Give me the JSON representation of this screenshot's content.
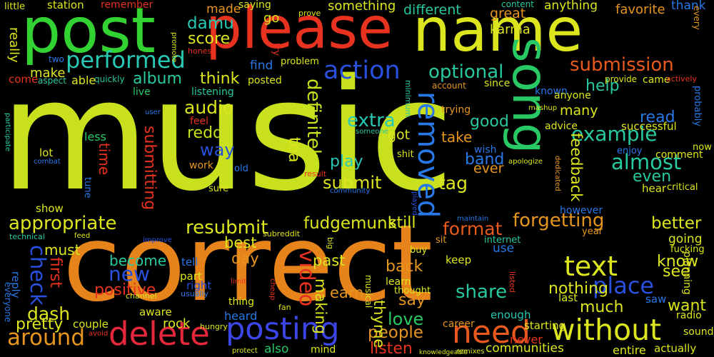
{
  "background_color": "#000000",
  "words": [
    {
      "id": "music",
      "text": "music",
      "color": "#c8e01e"
    },
    {
      "id": "correct",
      "text": "correct",
      "color": "#e6831a"
    },
    {
      "id": "please",
      "text": "please",
      "color": "#e6321e"
    },
    {
      "id": "post",
      "text": "post",
      "color": "#32d232"
    },
    {
      "id": "name",
      "text": "name",
      "color": "#dce61e"
    },
    {
      "id": "song",
      "text": "song",
      "color": "#28c864"
    },
    {
      "id": "delete",
      "text": "delete",
      "color": "#e6283c"
    },
    {
      "id": "posting",
      "text": "posting",
      "color": "#3c46e6"
    },
    {
      "id": "without",
      "text": "without",
      "color": "#dce61e"
    },
    {
      "id": "need",
      "text": "need",
      "color": "#e65a1e"
    },
    {
      "id": "text",
      "text": "text",
      "color": "#dce61e"
    },
    {
      "id": "action",
      "text": "action",
      "color": "#2850dc"
    },
    {
      "id": "performed",
      "text": "performed",
      "color": "#28c8b4"
    },
    {
      "id": "submission",
      "text": "submission",
      "color": "#e65a1e"
    },
    {
      "id": "removed",
      "text": "removed",
      "color": "#2878e6"
    },
    {
      "id": "around",
      "text": "around",
      "color": "#e6961e"
    },
    {
      "id": "place",
      "text": "place",
      "color": "#2850dc"
    },
    {
      "id": "almost",
      "text": "almost",
      "color": "#28c8a0"
    },
    {
      "id": "example",
      "text": "example",
      "color": "#28c8a0"
    },
    {
      "id": "definitely",
      "text": "definitely",
      "color": "#c8e01e"
    },
    {
      "id": "appropriate",
      "text": "appropriate",
      "color": "#dce61e"
    },
    {
      "id": "optional",
      "text": "optional",
      "color": "#28c8a0"
    },
    {
      "id": "check",
      "text": "check",
      "color": "#2850dc"
    },
    {
      "id": "video",
      "text": "video",
      "color": "#e6321e"
    },
    {
      "id": "forgetting",
      "text": "forgetting",
      "color": "#e6961e"
    },
    {
      "id": "format",
      "text": "format",
      "color": "#e65a1e"
    },
    {
      "id": "fudgemunk",
      "text": "fudgemunk",
      "color": "#dce61e"
    },
    {
      "id": "resubmit",
      "text": "resubmit",
      "color": "#dce61e"
    },
    {
      "id": "audio",
      "text": "audio",
      "color": "#dce61e"
    },
    {
      "id": "extra",
      "text": "extra",
      "color": "#28c8b4"
    },
    {
      "id": "dash",
      "text": "dash",
      "color": "#dce61e"
    },
    {
      "id": "share",
      "text": "share",
      "color": "#28c8a0"
    },
    {
      "id": "submitting",
      "text": "submitting",
      "color": "#e6321e"
    },
    {
      "id": "reddit",
      "text": "reddit",
      "color": "#c8e01e"
    },
    {
      "id": "tag",
      "text": "tag",
      "color": "#dce61e"
    },
    {
      "id": "new",
      "text": "new",
      "color": "#2850dc"
    },
    {
      "id": "still",
      "text": "still",
      "color": "#dce61e"
    },
    {
      "id": "submit",
      "text": "submit",
      "color": "#dce61e"
    },
    {
      "id": "tea",
      "text": "tea",
      "color": "#dce61e"
    },
    {
      "id": "feedback",
      "text": "feedback",
      "color": "#dce61e"
    },
    {
      "id": "people",
      "text": "people",
      "color": "#e6961e"
    },
    {
      "id": "love",
      "text": "love",
      "color": "#28c864"
    },
    {
      "id": "way",
      "text": "way",
      "color": "#2850dc"
    },
    {
      "id": "better",
      "text": "better",
      "color": "#dce61e"
    },
    {
      "id": "album",
      "text": "album",
      "color": "#28c8a0"
    },
    {
      "id": "damu",
      "text": "damu",
      "color": "#28c8b4"
    },
    {
      "id": "score",
      "text": "score",
      "color": "#dce61e"
    },
    {
      "id": "think",
      "text": "think",
      "color": "#dce61e"
    },
    {
      "id": "help",
      "text": "help",
      "color": "#28c8a0"
    },
    {
      "id": "good",
      "text": "good",
      "color": "#28c8a0"
    },
    {
      "id": "read",
      "text": "read",
      "color": "#2878e6"
    },
    {
      "id": "even",
      "text": "even",
      "color": "#28c8a0"
    },
    {
      "id": "band",
      "text": "band",
      "color": "#2878e6"
    },
    {
      "id": "play",
      "text": "play",
      "color": "#28c8b4"
    },
    {
      "id": "positive",
      "text": "positive",
      "color": "#e6321e"
    },
    {
      "id": "first",
      "text": "first",
      "color": "#e6321e"
    },
    {
      "id": "pretty",
      "text": "pretty",
      "color": "#dce61e"
    },
    {
      "id": "nothing",
      "text": "nothing",
      "color": "#dce61e"
    },
    {
      "id": "know",
      "text": "know",
      "color": "#dce61e"
    },
    {
      "id": "see",
      "text": "see",
      "color": "#dce61e"
    },
    {
      "id": "back",
      "text": "back",
      "color": "#e6961e"
    },
    {
      "id": "say",
      "text": "say",
      "color": "#e6961e"
    },
    {
      "id": "much",
      "text": "much",
      "color": "#dce61e"
    },
    {
      "id": "want",
      "text": "want",
      "color": "#dce61e"
    },
    {
      "id": "listen",
      "text": "listen",
      "color": "#e6321e"
    },
    {
      "id": "thyme",
      "text": "thyme",
      "color": "#dce61e"
    },
    {
      "id": "making",
      "text": "making",
      "color": "#dce61e"
    },
    {
      "id": "earn",
      "text": "earn",
      "color": "#e6961e"
    },
    {
      "id": "past",
      "text": "past",
      "color": "#dce61e"
    },
    {
      "id": "become",
      "text": "become",
      "color": "#28c8a0"
    },
    {
      "id": "day",
      "text": "day",
      "color": "#e6961e"
    },
    {
      "id": "best",
      "text": "best",
      "color": "#dce61e"
    },
    {
      "id": "must",
      "text": "must",
      "color": "#dce61e"
    },
    {
      "id": "make",
      "text": "make",
      "color": "#dce61e"
    },
    {
      "id": "really",
      "text": "really",
      "color": "#dce61e"
    },
    {
      "id": "time",
      "text": "time",
      "color": "#e6321e"
    },
    {
      "id": "many",
      "text": "many",
      "color": "#dce61e"
    },
    {
      "id": "take",
      "text": "take",
      "color": "#e6961e"
    },
    {
      "id": "got",
      "text": "got",
      "color": "#dce61e"
    },
    {
      "id": "ever",
      "text": "ever",
      "color": "#e6961e"
    },
    {
      "id": "great",
      "text": "great",
      "color": "#e6961e"
    },
    {
      "id": "karma",
      "text": "karma",
      "color": "#dce61e"
    },
    {
      "id": "different",
      "text": "different",
      "color": "#28c8a0"
    },
    {
      "id": "something",
      "text": "something",
      "color": "#dce61e"
    },
    {
      "id": "favorite",
      "text": "favorite",
      "color": "#e6961e"
    },
    {
      "id": "anything",
      "text": "anything",
      "color": "#dce61e"
    },
    {
      "id": "thank",
      "text": "thank",
      "color": "#2878e6"
    },
    {
      "id": "made",
      "text": "made",
      "color": "#e6961e"
    },
    {
      "id": "go",
      "text": "go",
      "color": "#dce61e"
    },
    {
      "id": "station",
      "text": "station",
      "color": "#dce61e"
    },
    {
      "id": "little",
      "text": "little",
      "color": "#dce61e"
    },
    {
      "id": "remember",
      "text": "remember",
      "color": "#e6321e"
    },
    {
      "id": "saying",
      "text": "saying",
      "color": "#dce61e"
    },
    {
      "id": "find",
      "text": "find",
      "color": "#2878e6"
    },
    {
      "id": "posted",
      "text": "posted",
      "color": "#dce61e"
    },
    {
      "id": "listening",
      "text": "listening",
      "color": "#28c8a0"
    },
    {
      "id": "live",
      "text": "live",
      "color": "#28c864"
    },
    {
      "id": "quickly",
      "text": "quickly",
      "color": "#28c8a0"
    },
    {
      "id": "able",
      "text": "able",
      "color": "#dce61e"
    },
    {
      "id": "come",
      "text": "come",
      "color": "#e6321e"
    },
    {
      "id": "two",
      "text": "two",
      "color": "#2878e6"
    },
    {
      "id": "less",
      "text": "less",
      "color": "#28c864"
    },
    {
      "id": "lot",
      "text": "lot",
      "color": "#dce61e"
    },
    {
      "id": "show",
      "text": "show",
      "color": "#dce61e"
    },
    {
      "id": "reply",
      "text": "reply",
      "color": "#2878e6"
    },
    {
      "id": "technical",
      "text": "technical",
      "color": "#28c8a0"
    },
    {
      "id": "couple",
      "text": "couple",
      "color": "#dce61e"
    },
    {
      "id": "aware",
      "text": "aware",
      "color": "#dce61e"
    },
    {
      "id": "rock",
      "text": "rock",
      "color": "#dce61e"
    },
    {
      "id": "heard",
      "text": "heard",
      "color": "#2878e6"
    },
    {
      "id": "also",
      "text": "also",
      "color": "#28c864"
    },
    {
      "id": "mind",
      "text": "mind",
      "color": "#dce61e"
    },
    {
      "id": "fan",
      "text": "fan",
      "color": "#dce61e"
    },
    {
      "id": "thing",
      "text": "thing",
      "color": "#dce61e"
    },
    {
      "id": "part",
      "text": "part",
      "color": "#dce61e"
    },
    {
      "id": "right",
      "text": "right",
      "color": "#2850dc"
    },
    {
      "id": "tell",
      "text": "tell",
      "color": "#2878e6"
    },
    {
      "id": "enough",
      "text": "enough",
      "color": "#28c8b4"
    },
    {
      "id": "communities",
      "text": "communities",
      "color": "#dce61e"
    },
    {
      "id": "entire",
      "text": "entire",
      "color": "#dce61e"
    },
    {
      "id": "actually",
      "text": "actually",
      "color": "#dce61e"
    },
    {
      "id": "sound",
      "text": "sound",
      "color": "#dce61e"
    },
    {
      "id": "never",
      "text": "never",
      "color": "#e6321e"
    },
    {
      "id": "starting",
      "text": "starting",
      "color": "#dce61e"
    },
    {
      "id": "career",
      "text": "career",
      "color": "#e6961e"
    },
    {
      "id": "keep",
      "text": "keep",
      "color": "#dce61e"
    },
    {
      "id": "use",
      "text": "use",
      "color": "#2878e6"
    },
    {
      "id": "going",
      "text": "going",
      "color": "#dce61e"
    },
    {
      "id": "planning",
      "text": "planning",
      "color": "#dce61e"
    },
    {
      "id": "fucking",
      "text": "fucking",
      "color": "#dce61e"
    },
    {
      "id": "saw",
      "text": "saw",
      "color": "#2878e6"
    },
    {
      "id": "last",
      "text": "last",
      "color": "#dce61e"
    },
    {
      "id": "radio",
      "text": "radio",
      "color": "#dce61e"
    },
    {
      "id": "however",
      "text": "however",
      "color": "#2878e6"
    },
    {
      "id": "hear",
      "text": "hear",
      "color": "#dce61e"
    },
    {
      "id": "critical",
      "text": "critical",
      "color": "#dce61e"
    },
    {
      "id": "comment",
      "text": "comment",
      "color": "#dce61e"
    },
    {
      "id": "enjoy",
      "text": "enjoy",
      "color": "#2878e6"
    },
    {
      "id": "successful",
      "text": "successful",
      "color": "#dce61e"
    },
    {
      "id": "advice",
      "text": "advice",
      "color": "#dce61e"
    },
    {
      "id": "trying",
      "text": "trying",
      "color": "#e6961e"
    },
    {
      "id": "since",
      "text": "since",
      "color": "#dce61e"
    },
    {
      "id": "known",
      "text": "known",
      "color": "#2878e6"
    },
    {
      "id": "anyone",
      "text": "anyone",
      "color": "#dce61e"
    },
    {
      "id": "provide",
      "text": "provide",
      "color": "#dce61e"
    },
    {
      "id": "came",
      "text": "came",
      "color": "#dce61e"
    },
    {
      "id": "actively",
      "text": "actively",
      "color": "#e6321e"
    },
    {
      "id": "probably",
      "text": "probably",
      "color": "#2878e6"
    },
    {
      "id": "now",
      "text": "now",
      "color": "#dce61e"
    },
    {
      "id": "every",
      "text": "every",
      "color": "#e6961e"
    },
    {
      "id": "content",
      "text": "content",
      "color": "#28c8a0"
    },
    {
      "id": "problem",
      "text": "problem",
      "color": "#dce61e"
    },
    {
      "id": "account",
      "text": "account",
      "color": "#e6961e"
    },
    {
      "id": "minimum",
      "text": "minimum",
      "color": "#28c8a0"
    },
    {
      "id": "prove",
      "text": "prove",
      "color": "#dce61e"
    },
    {
      "id": "try",
      "text": "try",
      "color": "#e6321e"
    },
    {
      "id": "honest",
      "text": "honest",
      "color": "#e6321e"
    },
    {
      "id": "promote",
      "text": "promote",
      "color": "#dce61e"
    },
    {
      "id": "aspect",
      "text": "aspect",
      "color": "#28c8a0"
    },
    {
      "id": "user",
      "text": "user",
      "color": "#2878e6"
    },
    {
      "id": "feel",
      "text": "feel",
      "color": "#e6321e"
    },
    {
      "id": "work",
      "text": "work",
      "color": "#e6961e"
    },
    {
      "id": "old",
      "text": "old",
      "color": "#2878e6"
    },
    {
      "id": "sure",
      "text": "sure",
      "color": "#dce61e"
    },
    {
      "id": "tune",
      "text": "tune",
      "color": "#2878e6"
    },
    {
      "id": "combat",
      "text": "combat",
      "color": "#2878e6"
    },
    {
      "id": "participate",
      "text": "participate",
      "color": "#28c8a0"
    },
    {
      "id": "someone",
      "text": "someone",
      "color": "#28c8a0"
    },
    {
      "id": "shit",
      "text": "shit",
      "color": "#dce61e"
    },
    {
      "id": "wish",
      "text": "wish",
      "color": "#2878e6"
    },
    {
      "id": "result",
      "text": "result",
      "color": "#e6321e"
    },
    {
      "id": "community",
      "text": "community",
      "color": "#2878e6"
    },
    {
      "id": "apologize",
      "text": "apologize",
      "color": "#dce61e"
    },
    {
      "id": "dedicated",
      "text": "dedicated",
      "color": "#e6961e"
    },
    {
      "id": "mashup",
      "text": "mashup",
      "color": "#dce61e"
    },
    {
      "id": "played",
      "text": "played",
      "color": "#2850dc"
    },
    {
      "id": "maintain",
      "text": "maintain",
      "color": "#2878e6"
    },
    {
      "id": "subreddit",
      "text": "subreddit",
      "color": "#dce61e"
    },
    {
      "id": "big",
      "text": "big",
      "color": "#dce61e"
    },
    {
      "id": "sit",
      "text": "sit",
      "color": "#e6961e"
    },
    {
      "id": "internet",
      "text": "internet",
      "color": "#28c8a0"
    },
    {
      "id": "buy",
      "text": "buy",
      "color": "#dce61e"
    },
    {
      "id": "year",
      "text": "year",
      "color": "#e6961e"
    },
    {
      "id": "feed",
      "text": "feed",
      "color": "#dce61e"
    },
    {
      "id": "improve",
      "text": "improve",
      "color": "#2850dc"
    },
    {
      "id": "channel",
      "text": "channel",
      "color": "#dce61e"
    },
    {
      "id": "usually",
      "text": "usually",
      "color": "#2878e6"
    },
    {
      "id": "limit",
      "text": "limit",
      "color": "#e6321e"
    },
    {
      "id": "cheap",
      "text": "cheap",
      "color": "#e6321e"
    },
    {
      "id": "musical",
      "text": "musical",
      "color": "#dce61e"
    },
    {
      "id": "thought",
      "text": "thought",
      "color": "#dce61e"
    },
    {
      "id": "learn",
      "text": "learn",
      "color": "#dce61e"
    },
    {
      "id": "hungry",
      "text": "hungry",
      "color": "#dce61e"
    },
    {
      "id": "protect",
      "text": "protect",
      "color": "#dce61e"
    },
    {
      "id": "avoid",
      "text": "avoid",
      "color": "#e6321e"
    },
    {
      "id": "everyone",
      "text": "everyone",
      "color": "#2878e6"
    },
    {
      "id": "knowledgeable",
      "text": "knowledgeable",
      "color": "#dce61e"
    },
    {
      "id": "remixes",
      "text": "remixes",
      "color": "#dce61e"
    },
    {
      "id": "listed",
      "text": "listed",
      "color": "#e6321e"
    }
  ]
}
